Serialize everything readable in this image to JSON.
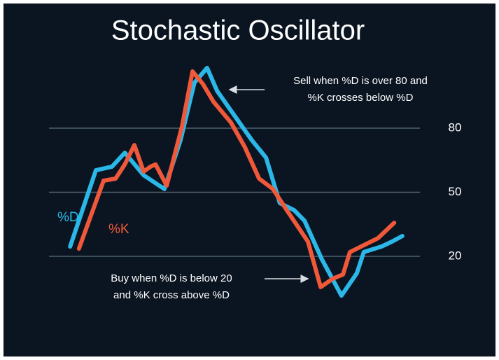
{
  "chart_data": {
    "type": "line",
    "title": "Stochastic Oscillator",
    "xlim": [
      0,
      100
    ],
    "ylim": [
      -15,
      110
    ],
    "yticks": [
      20,
      50,
      80
    ],
    "grid": true,
    "series": [
      {
        "name": "%D",
        "color": "#2bb8e8",
        "x": [
          7.3,
          14,
          18.2,
          21.5,
          26.4,
          31.8,
          36,
          39.6,
          42.9,
          45.5,
          50,
          54.5,
          58.2,
          61.8,
          65.5,
          68.2,
          72.7,
          77.8,
          81.8,
          83.6,
          88.2,
          90.9,
          93.6
        ],
        "values": [
          24.6,
          60.3,
          62,
          68.5,
          58,
          51.5,
          74.4,
          101.3,
          108.2,
          97.4,
          85.9,
          74.4,
          66.2,
          44.9,
          41.6,
          36.7,
          18.7,
          1.6,
          12.1,
          22,
          24.6,
          26.9,
          29.5
        ]
      },
      {
        "name": "%K",
        "color": "#f0583a",
        "x": [
          9.6,
          16,
          19.1,
          21.5,
          24,
          26.4,
          28.2,
          29.5,
          32.4,
          36.4,
          39.1,
          41.8,
          44.5,
          49.1,
          52.7,
          56.4,
          60,
          63.6,
          69.1,
          72.4,
          75.5,
          78.2,
          80,
          83.6,
          87.3,
          91.5
        ],
        "values": [
          23.6,
          55.4,
          56.4,
          63,
          72.1,
          59.7,
          62,
          63,
          53.1,
          81,
          106.6,
          100.7,
          92.5,
          82.6,
          71.1,
          56.4,
          51.5,
          41.6,
          26.9,
          5.6,
          9.5,
          11.5,
          22,
          25.2,
          28.5,
          35.7
        ]
      }
    ],
    "annotations": [
      {
        "lines": [
          "Sell when %D is over 80 and",
          "%K crosses below %D"
        ]
      },
      {
        "lines": [
          "Buy when %D is below 20",
          "and %K cross above %D"
        ]
      }
    ]
  }
}
